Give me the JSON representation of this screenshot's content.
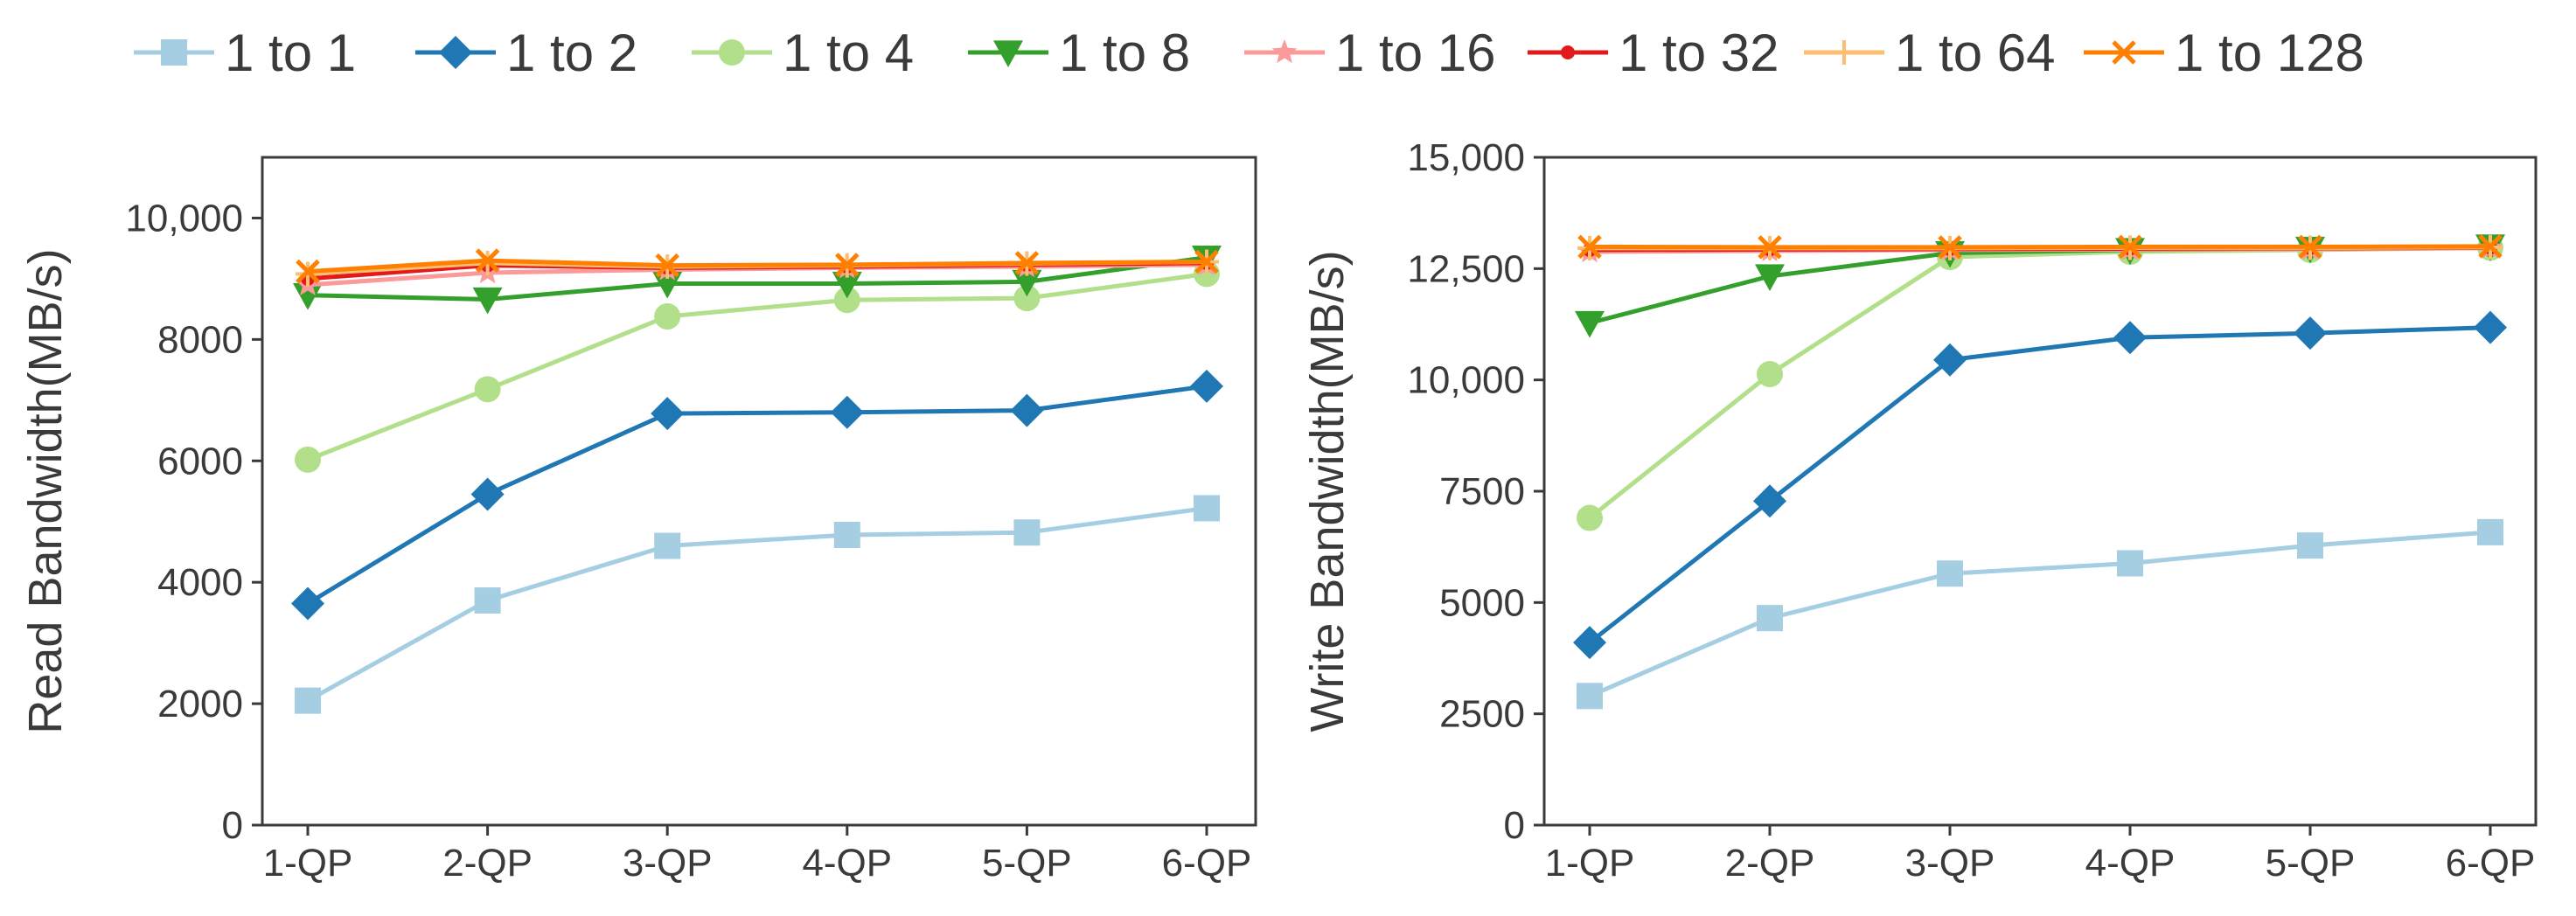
{
  "legend": {
    "items": [
      {
        "label": "1 to 1",
        "color": "#a6cee3",
        "marker": "square"
      },
      {
        "label": "1 to 2",
        "color": "#1f78b4",
        "marker": "diamond"
      },
      {
        "label": "1 to 4",
        "color": "#b2df8a",
        "marker": "circle"
      },
      {
        "label": "1 to 8",
        "color": "#33a02c",
        "marker": "triangle-down"
      },
      {
        "label": "1 to 16",
        "color": "#fb9a99",
        "marker": "star"
      },
      {
        "label": "1 to 32",
        "color": "#e31a1c",
        "marker": "dot"
      },
      {
        "label": "1 to 64",
        "color": "#fdbf6f",
        "marker": "plus"
      },
      {
        "label": "1 to 128",
        "color": "#ff7f00",
        "marker": "x"
      }
    ]
  },
  "chart_data": [
    {
      "type": "line",
      "categories": [
        "1-QP",
        "2-QP",
        "3-QP",
        "4-QP",
        "5-QP",
        "6-QP"
      ],
      "ylabel": "Read Bandwidth(MB/s)",
      "xlabel": "",
      "ylim": [
        0,
        11000
      ],
      "yticks": [
        0,
        2000,
        4000,
        6000,
        8000,
        10000
      ],
      "ytick_labels": [
        "0",
        "2000",
        "4000",
        "6000",
        "8000",
        "10,000"
      ],
      "grid": false,
      "series": [
        {
          "name": "1 to 1",
          "values": [
            2050,
            3700,
            4600,
            4780,
            4820,
            5220
          ]
        },
        {
          "name": "1 to 2",
          "values": [
            3650,
            5450,
            6780,
            6800,
            6830,
            7230
          ]
        },
        {
          "name": "1 to 4",
          "values": [
            6020,
            7180,
            8380,
            8650,
            8680,
            9080
          ]
        },
        {
          "name": "1 to 8",
          "values": [
            8730,
            8660,
            8920,
            8920,
            8950,
            9350
          ]
        },
        {
          "name": "1 to 16",
          "values": [
            8900,
            9100,
            9150,
            9180,
            9200,
            9230
          ]
        },
        {
          "name": "1 to 32",
          "values": [
            9000,
            9220,
            9180,
            9200,
            9230,
            9260
          ]
        },
        {
          "name": "1 to 64",
          "values": [
            9080,
            9260,
            9200,
            9220,
            9250,
            9280
          ]
        },
        {
          "name": "1 to 128",
          "values": [
            9120,
            9300,
            9220,
            9230,
            9260,
            9280
          ]
        }
      ]
    },
    {
      "type": "line",
      "categories": [
        "1-QP",
        "2-QP",
        "3-QP",
        "4-QP",
        "5-QP",
        "6-QP"
      ],
      "ylabel": "Write Bandwidth(MB/s)",
      "xlabel": "",
      "ylim": [
        0,
        15000
      ],
      "yticks": [
        0,
        2500,
        5000,
        7500,
        10000,
        12500,
        15000
      ],
      "ytick_labels": [
        "0",
        "2500",
        "5000",
        "7500",
        "10,000",
        "12,500",
        "15,000"
      ],
      "grid": false,
      "series": [
        {
          "name": "1 to 1",
          "values": [
            2900,
            4650,
            5650,
            5880,
            6280,
            6580
          ]
        },
        {
          "name": "1 to 2",
          "values": [
            4100,
            7280,
            10450,
            10950,
            11050,
            11180
          ]
        },
        {
          "name": "1 to 4",
          "values": [
            6900,
            10130,
            12760,
            12880,
            12920,
            12970
          ]
        },
        {
          "name": "1 to 8",
          "values": [
            11280,
            12330,
            12850,
            12920,
            12950,
            13000
          ]
        },
        {
          "name": "1 to 16",
          "values": [
            12880,
            12900,
            12920,
            12930,
            12940,
            12960
          ]
        },
        {
          "name": "1 to 32",
          "values": [
            12920,
            12930,
            12940,
            12950,
            12960,
            12970
          ]
        },
        {
          "name": "1 to 64",
          "values": [
            12960,
            12960,
            12960,
            12970,
            12970,
            12980
          ]
        },
        {
          "name": "1 to 128",
          "values": [
            12990,
            12980,
            12980,
            12990,
            12990,
            13000
          ]
        }
      ]
    }
  ]
}
